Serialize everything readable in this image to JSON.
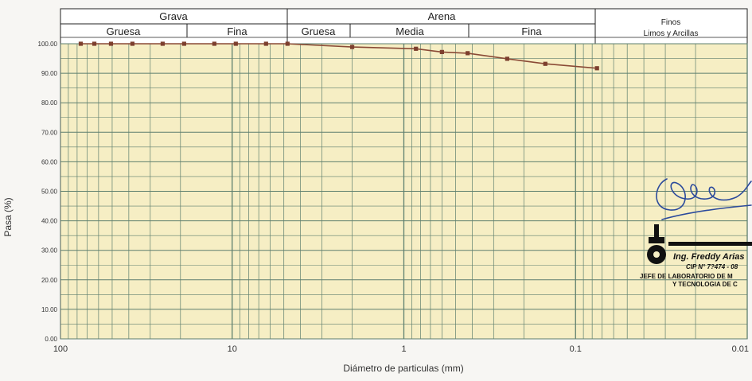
{
  "header": {
    "grava": "Grava",
    "grava_gruesa": "Gruesa",
    "grava_fina": "Fina",
    "arena": "Arena",
    "arena_gruesa": "Gruesa",
    "arena_media": "Media",
    "arena_fina": "Fina",
    "finos": "Finos",
    "finos_sub": "Limos y Arcillas"
  },
  "stamp": {
    "name": "Ing. Freddy Arias",
    "cip": "CIP N° 7?474 - 08",
    "line1": "JEFE DE LABORATORIO DE M",
    "line2": "Y TECNOLOGIA DE C"
  },
  "colors": {
    "plot_bg": "#f6eec4",
    "grid": "#5e7f6e",
    "series": "#8a4a36",
    "marker": "#7d3f2e"
  },
  "chart_data": {
    "type": "scatter",
    "x_scale": "log",
    "x_reversed": true,
    "xlim": [
      100,
      0.01
    ],
    "ylim": [
      0,
      100
    ],
    "xlabel": "Diámetro de particulas (mm)",
    "ylabel": "Pasa (%)",
    "x_ticks": [
      "100",
      "10",
      "1",
      "0.1",
      "0.01"
    ],
    "y_ticks": [
      "0.00",
      "10.00",
      "20.00",
      "30.00",
      "40.00",
      "50.00",
      "60.00",
      "70.00",
      "80.00",
      "90.00",
      "100.00"
    ],
    "grid": true,
    "series": [
      {
        "x": [
          76.2,
          63.5,
          50.8,
          38.1,
          25.4,
          19.05,
          12.7,
          9.525,
          6.35,
          4.76,
          2.0,
          0.85,
          0.6,
          0.425,
          0.25,
          0.15,
          0.075
        ],
        "y": [
          100.0,
          100.0,
          100.0,
          100.0,
          100.0,
          100.0,
          100.0,
          100.0,
          100.0,
          100.0,
          98.9,
          98.3,
          97.2,
          96.8,
          94.9,
          93.2,
          91.7
        ]
      }
    ]
  }
}
